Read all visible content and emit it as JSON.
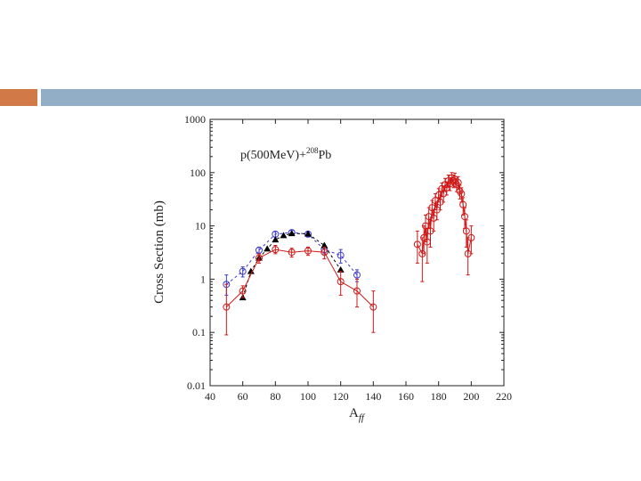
{
  "slide": {
    "accent_orange": "#d27a47",
    "accent_blue": "#92aec7"
  },
  "chart_data": {
    "type": "scatter",
    "title": "",
    "annotation": {
      "text": "p(500MeV)+",
      "sup": "208",
      "suffix": "Pb"
    },
    "xlabel": "A",
    "xlabel_sub": "ff",
    "ylabel": "Cross Section (mb)",
    "xlim": [
      40,
      220
    ],
    "ylim": [
      0.01,
      1000
    ],
    "yscale": "log",
    "x_ticks": [
      40,
      60,
      80,
      100,
      120,
      140,
      160,
      180,
      200,
      220
    ],
    "x_tick_labels": [
      "40",
      "60",
      "80",
      "100",
      "120",
      "140",
      "160",
      "180",
      "200",
      "220"
    ],
    "y_ticks": [
      0.01,
      0.1,
      1,
      10,
      100,
      1000
    ],
    "y_tick_labels": [
      "0.01",
      "0.1",
      "1",
      "10",
      "100",
      "1000"
    ],
    "series": [
      {
        "name": "calc-blue",
        "color": "#3b3bcf",
        "marker": "circle-open",
        "line": "dashed",
        "points": [
          {
            "x": 50,
            "y": 0.8,
            "lo": 0.5,
            "hi": 1.2
          },
          {
            "x": 60,
            "y": 1.4,
            "lo": 1.1,
            "hi": 1.7
          },
          {
            "x": 70,
            "y": 3.5,
            "lo": 3.0,
            "hi": 4.0
          },
          {
            "x": 80,
            "y": 7.0,
            "lo": 6.2,
            "hi": 7.8
          },
          {
            "x": 90,
            "y": 7.5,
            "lo": 6.8,
            "hi": 8.2
          },
          {
            "x": 100,
            "y": 7.0,
            "lo": 6.3,
            "hi": 7.7
          },
          {
            "x": 110,
            "y": 3.6,
            "lo": 3.0,
            "hi": 4.2
          },
          {
            "x": 120,
            "y": 2.8,
            "lo": 2.0,
            "hi": 3.6
          },
          {
            "x": 130,
            "y": 1.2,
            "lo": 0.9,
            "hi": 1.5
          }
        ]
      },
      {
        "name": "calc-black",
        "color": "#000000",
        "marker": "triangle",
        "line": "dashed",
        "points": [
          {
            "x": 60,
            "y": 0.45
          },
          {
            "x": 65,
            "y": 1.4
          },
          {
            "x": 70,
            "y": 2.5
          },
          {
            "x": 75,
            "y": 3.7
          },
          {
            "x": 80,
            "y": 5.5
          },
          {
            "x": 85,
            "y": 6.6
          },
          {
            "x": 90,
            "y": 7.2
          },
          {
            "x": 100,
            "y": 7.1
          },
          {
            "x": 110,
            "y": 4.3
          },
          {
            "x": 120,
            "y": 1.5
          }
        ]
      },
      {
        "name": "exp-red",
        "color": "#d01818",
        "marker": "circle-open",
        "line": "solid",
        "points": [
          {
            "x": 50,
            "y": 0.3,
            "lo": 0.09,
            "hi": 0.8
          },
          {
            "x": 60,
            "y": 0.6,
            "lo": 0.45,
            "hi": 0.75
          },
          {
            "x": 70,
            "y": 2.5,
            "lo": 2.0,
            "hi": 3.0
          },
          {
            "x": 80,
            "y": 3.6,
            "lo": 3.0,
            "hi": 4.3
          },
          {
            "x": 90,
            "y": 3.2,
            "lo": 2.6,
            "hi": 3.8
          },
          {
            "x": 100,
            "y": 3.4,
            "lo": 2.8,
            "hi": 4.0
          },
          {
            "x": 110,
            "y": 3.2,
            "lo": 2.4,
            "hi": 4.0
          },
          {
            "x": 120,
            "y": 0.9,
            "lo": 0.5,
            "hi": 1.4
          },
          {
            "x": 130,
            "y": 0.6,
            "lo": 0.3,
            "hi": 1.0
          },
          {
            "x": 140,
            "y": 0.3,
            "lo": 0.1,
            "hi": 0.6
          }
        ]
      },
      {
        "name": "exp-red-heavy",
        "color": "#d01818",
        "marker": "circle-open",
        "line": "solid",
        "points": [
          {
            "x": 167,
            "y": 4.5,
            "lo": 2.0,
            "hi": 8.0
          },
          {
            "x": 170,
            "y": 3.0,
            "lo": 0.9,
            "hi": 6.0
          },
          {
            "x": 171,
            "y": 6.0,
            "lo": 3.0,
            "hi": 10.0
          },
          {
            "x": 172,
            "y": 10.0,
            "lo": 5.0,
            "hi": 16.0
          },
          {
            "x": 173,
            "y": 5.0,
            "lo": 2.0,
            "hi": 9.0
          },
          {
            "x": 174,
            "y": 15.0,
            "lo": 9.0,
            "hi": 22.0
          },
          {
            "x": 175,
            "y": 8.0,
            "lo": 4.0,
            "hi": 13.0
          },
          {
            "x": 176,
            "y": 22.0,
            "lo": 14.0,
            "hi": 30.0
          },
          {
            "x": 177,
            "y": 14.0,
            "lo": 8.0,
            "hi": 20.0
          },
          {
            "x": 178,
            "y": 30.0,
            "lo": 20.0,
            "hi": 40.0
          },
          {
            "x": 179,
            "y": 20.0,
            "lo": 13.0,
            "hi": 28.0
          },
          {
            "x": 180,
            "y": 38.0,
            "lo": 28.0,
            "hi": 50.0
          },
          {
            "x": 181,
            "y": 28.0,
            "lo": 20.0,
            "hi": 38.0
          },
          {
            "x": 182,
            "y": 50.0,
            "lo": 36.0,
            "hi": 64.0
          },
          {
            "x": 183,
            "y": 40.0,
            "lo": 28.0,
            "hi": 52.0
          },
          {
            "x": 184,
            "y": 60.0,
            "lo": 45.0,
            "hi": 78.0
          },
          {
            "x": 185,
            "y": 52.0,
            "lo": 38.0,
            "hi": 66.0
          },
          {
            "x": 186,
            "y": 70.0,
            "lo": 52.0,
            "hi": 90.0
          },
          {
            "x": 187,
            "y": 62.0,
            "lo": 46.0,
            "hi": 80.0
          },
          {
            "x": 188,
            "y": 80.0,
            "lo": 60.0,
            "hi": 100.0
          },
          {
            "x": 189,
            "y": 70.0,
            "lo": 52.0,
            "hi": 90.0
          },
          {
            "x": 190,
            "y": 75.0,
            "lo": 55.0,
            "hi": 98.0
          },
          {
            "x": 191,
            "y": 60.0,
            "lo": 44.0,
            "hi": 78.0
          },
          {
            "x": 192,
            "y": 65.0,
            "lo": 48.0,
            "hi": 84.0
          },
          {
            "x": 193,
            "y": 45.0,
            "lo": 32.0,
            "hi": 58.0
          },
          {
            "x": 194,
            "y": 40.0,
            "lo": 28.0,
            "hi": 52.0
          },
          {
            "x": 195,
            "y": 25.0,
            "lo": 16.0,
            "hi": 34.0
          },
          {
            "x": 196,
            "y": 15.0,
            "lo": 9.0,
            "hi": 22.0
          },
          {
            "x": 197,
            "y": 8.0,
            "lo": 4.0,
            "hi": 13.0
          },
          {
            "x": 198,
            "y": 3.0,
            "lo": 1.2,
            "hi": 6.0
          },
          {
            "x": 200,
            "y": 6.0,
            "lo": 3.0,
            "hi": 10.0
          }
        ]
      }
    ]
  }
}
